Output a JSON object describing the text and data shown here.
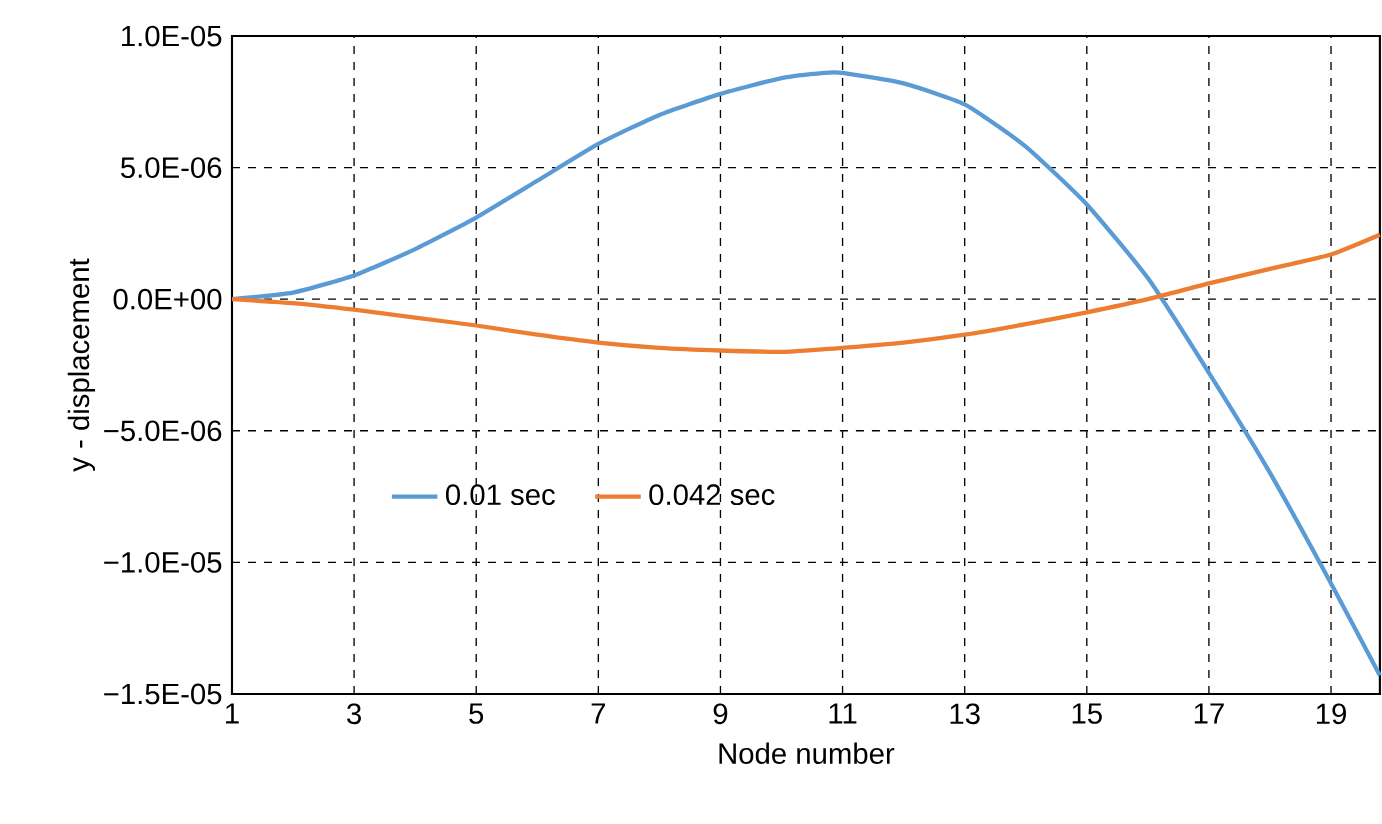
{
  "chart_data": {
    "type": "line",
    "xlabel": "Node number",
    "ylabel": "y - displacement",
    "x": [
      1,
      2,
      3,
      4,
      5,
      6,
      7,
      8,
      9,
      10,
      10.7,
      11,
      12,
      13,
      14,
      15,
      16,
      17,
      18,
      19,
      19.8
    ],
    "series": [
      {
        "name": "0.01 sec",
        "color": "#5b9bd5",
        "values": [
          0,
          2.5e-07,
          9e-07,
          1.9e-06,
          3.1e-06,
          4.5e-06,
          5.9e-06,
          7e-06,
          7.8e-06,
          8.4e-06,
          8.6e-06,
          8.6e-06,
          8.2e-06,
          7.4e-06,
          5.8e-06,
          3.6e-06,
          8e-07,
          -2.8e-06,
          -6.6e-06,
          -1.08e-05,
          -1.43e-05
        ]
      },
      {
        "name": "0.042 sec",
        "color": "#ed7d31",
        "values": [
          0,
          -1.5e-07,
          -4e-07,
          -7e-07,
          -1e-06,
          -1.35e-06,
          -1.65e-06,
          -1.85e-06,
          -1.95e-06,
          -2e-06,
          -1.9e-06,
          -1.85e-06,
          -1.65e-06,
          -1.35e-06,
          -9.5e-07,
          -5e-07,
          0.0,
          6e-07,
          1.15e-06,
          1.7e-06,
          2.45e-06
        ]
      }
    ],
    "xlim": [
      1,
      19.8
    ],
    "xticks": [
      1,
      3,
      5,
      7,
      9,
      11,
      13,
      15,
      17,
      19
    ],
    "ylim": [
      -1.5e-05,
      1e-05
    ],
    "yticks": [
      {
        "value": -1.5e-05,
        "label": "−1.5E-05"
      },
      {
        "value": -1e-05,
        "label": "−1.0E-05"
      },
      {
        "value": -5e-06,
        "label": "−5.0E-06"
      },
      {
        "value": 0,
        "label": "0.0E+00"
      },
      {
        "value": 5e-06,
        "label": "5.0E-06"
      },
      {
        "value": 1e-05,
        "label": "1.0E-05"
      }
    ],
    "grid": true,
    "legend": "bottom left",
    "line_style": "solid"
  }
}
